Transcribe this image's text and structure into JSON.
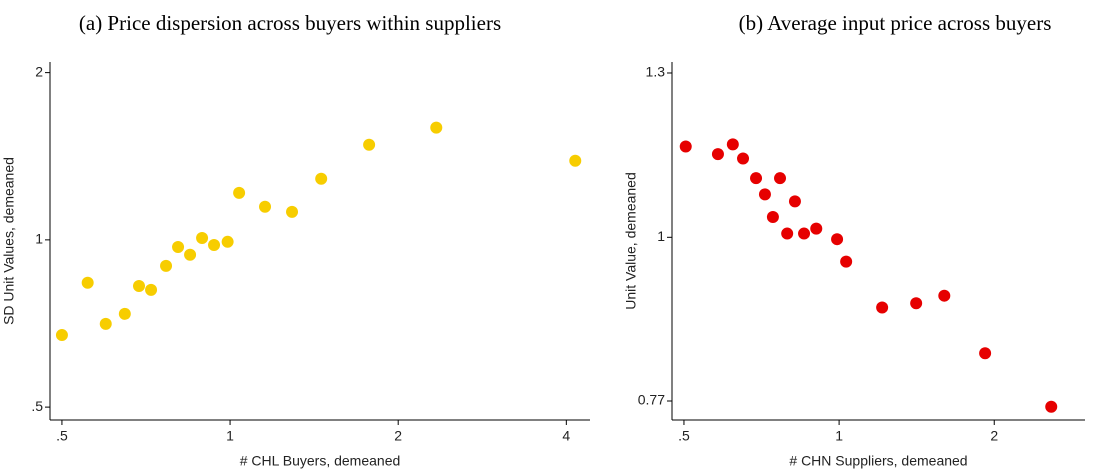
{
  "chart_data": [
    {
      "type": "scatter",
      "title": "(a) Price dispersion across buyers within suppliers",
      "x_label": "# CHL Buyers, demeaned",
      "y_label": "SD Unit Values, demeaned",
      "xscale": "log",
      "yscale": "log",
      "color": "#f7cd00",
      "xlim": [
        0.476,
        4.41
      ],
      "ylim": [
        0.474,
        2.09
      ],
      "xticks": [
        {
          "value": 0.5,
          "label": ".5"
        },
        1,
        2,
        4
      ],
      "yticks": [
        {
          "value": 0.5,
          "label": ".5"
        },
        1,
        2
      ],
      "x": [
        0.5,
        0.556,
        0.599,
        0.648,
        0.687,
        0.722,
        0.768,
        0.807,
        0.848,
        0.891,
        0.936,
        0.99,
        1.038,
        1.155,
        1.291,
        1.456,
        1.774,
        2.34,
        4.15
      ],
      "values": [
        0.674,
        0.837,
        0.706,
        0.736,
        0.826,
        0.813,
        0.898,
        0.971,
        0.94,
        1.008,
        0.979,
        0.992,
        1.215,
        1.147,
        1.123,
        1.288,
        1.483,
        1.592,
        1.388
      ]
    },
    {
      "type": "scatter",
      "title": "(b) Average input price across buyers",
      "x_label": "# CHN Suppliers, demeaned",
      "y_label": "Unit Value, demeaned",
      "xscale": "log",
      "yscale": "log",
      "color": "#e60000",
      "xlim": [
        0.474,
        3.0
      ],
      "ylim": [
        0.747,
        1.323
      ],
      "xticks": [
        {
          "value": 0.5,
          "label": ".5"
        },
        1,
        2
      ],
      "yticks": [
        0.77,
        1,
        1.3
      ],
      "x": [
        0.504,
        0.582,
        0.622,
        0.651,
        0.69,
        0.718,
        0.744,
        0.768,
        0.793,
        0.821,
        0.855,
        0.903,
        0.991,
        1.032,
        1.212,
        1.411,
        1.6,
        1.92,
        2.58
      ],
      "values": [
        1.156,
        1.142,
        1.16,
        1.134,
        1.099,
        1.071,
        1.033,
        1.099,
        1.006,
        1.059,
        1.006,
        1.014,
        0.997,
        0.962,
        0.894,
        0.9,
        0.911,
        0.831,
        0.763
      ]
    }
  ]
}
